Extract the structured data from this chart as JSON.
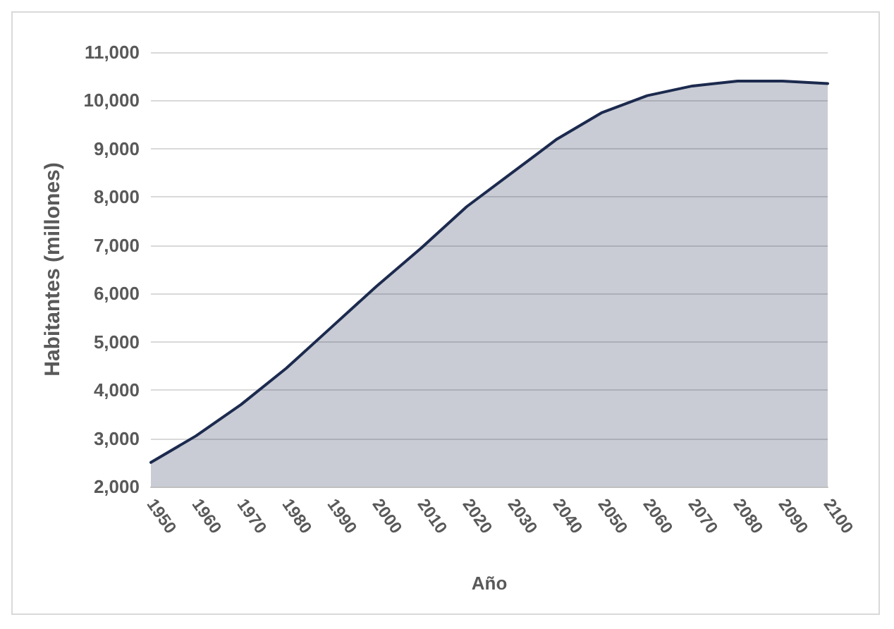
{
  "chart_data": {
    "type": "area",
    "xlabel": "Año",
    "ylabel": "Habitantes (millones)",
    "x": [
      1950,
      1960,
      1970,
      1980,
      1990,
      2000,
      2010,
      2020,
      2030,
      2040,
      2050,
      2060,
      2070,
      2080,
      2090,
      2100
    ],
    "series": [
      {
        "color": "#1c2a4e",
        "values": [
          2500,
          3050,
          3700,
          4450,
          5300,
          6150,
          6950,
          7800,
          8500,
          9200,
          9750,
          10100,
          10300,
          10400,
          10400,
          10350
        ]
      }
    ],
    "xlim": [
      1950,
      2100
    ],
    "xticks": [
      1950,
      1960,
      1970,
      1980,
      1990,
      2000,
      2010,
      2020,
      2030,
      2040,
      2050,
      2060,
      2070,
      2080,
      2090,
      2100
    ],
    "ylim": [
      2000,
      11000
    ],
    "yticks": [
      {
        "value": 2000,
        "label": "2,000"
      },
      {
        "value": 3000,
        "label": "3,000"
      },
      {
        "value": 4000,
        "label": "4,000"
      },
      {
        "value": 5000,
        "label": "5,000"
      },
      {
        "value": 6000,
        "label": "6,000"
      },
      {
        "value": 7000,
        "label": "7,000"
      },
      {
        "value": 8000,
        "label": "8,000"
      },
      {
        "value": 9000,
        "label": "9,000"
      },
      {
        "value": 10000,
        "label": "10,000"
      },
      {
        "value": 11000,
        "label": "11,000"
      }
    ],
    "grid": "y",
    "marker": "none"
  }
}
